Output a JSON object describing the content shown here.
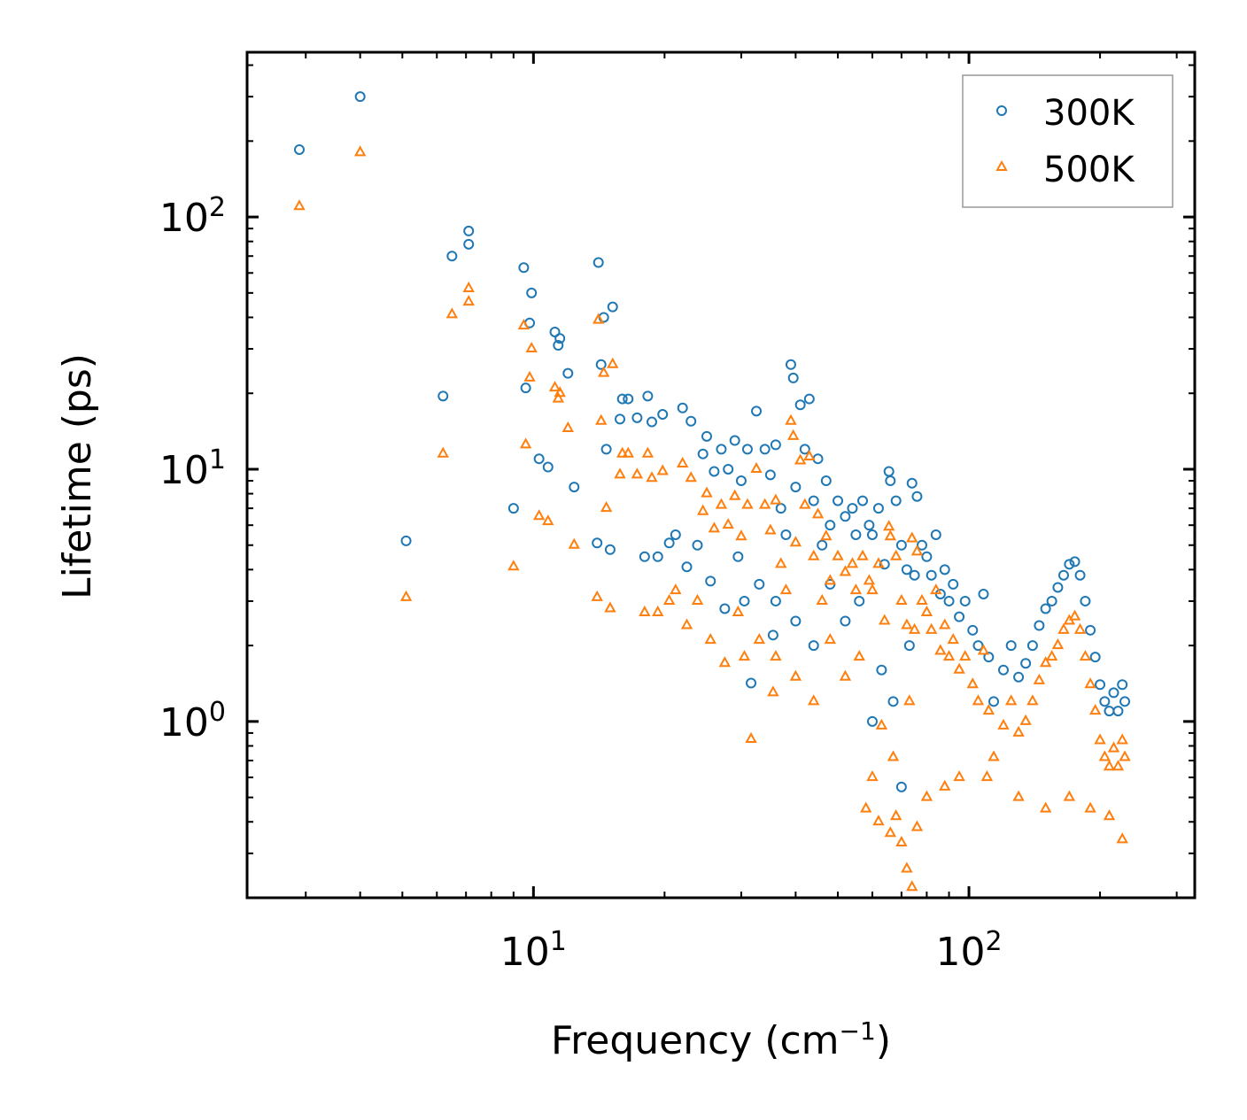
{
  "chart_data": {
    "type": "scatter",
    "title": "",
    "xlabel": "Frequency (cm",
    "xlabel_superscript": "−1",
    "xlabel_close": ")",
    "ylabel": "Lifetime (ps)",
    "xscale": "log",
    "yscale": "log",
    "xlim": [
      2.2,
      330
    ],
    "ylim": [
      0.2,
      450
    ],
    "x_ticks": [
      {
        "value": 10,
        "base": "10",
        "exp": "1"
      },
      {
        "value": 100,
        "base": "10",
        "exp": "2"
      }
    ],
    "y_ticks": [
      {
        "value": 1,
        "base": "10",
        "exp": "0"
      },
      {
        "value": 10,
        "base": "10",
        "exp": "1"
      },
      {
        "value": 100,
        "base": "10",
        "exp": "2"
      }
    ],
    "legend_position": "top-right",
    "series": [
      {
        "name": "300K",
        "color": "#1f77b4",
        "marker": "circle",
        "points": [
          [
            2.9,
            185
          ],
          [
            4.0,
            300
          ],
          [
            5.1,
            5.2
          ],
          [
            6.2,
            19.5
          ],
          [
            6.5,
            70
          ],
          [
            7.1,
            88
          ],
          [
            7.1,
            78
          ],
          [
            9.0,
            7.0
          ],
          [
            9.5,
            63
          ],
          [
            9.6,
            21
          ],
          [
            9.8,
            38
          ],
          [
            9.9,
            50
          ],
          [
            10.3,
            11
          ],
          [
            10.8,
            10.2
          ],
          [
            11.2,
            35
          ],
          [
            11.4,
            31
          ],
          [
            11.5,
            33
          ],
          [
            12.0,
            24
          ],
          [
            12.4,
            8.5
          ],
          [
            14.0,
            5.1
          ],
          [
            14.1,
            66
          ],
          [
            14.3,
            26
          ],
          [
            14.5,
            40
          ],
          [
            14.7,
            12
          ],
          [
            15.0,
            4.8
          ],
          [
            15.2,
            44
          ],
          [
            15.8,
            15.8
          ],
          [
            16.0,
            19
          ],
          [
            16.5,
            19
          ],
          [
            17.3,
            16
          ],
          [
            18.0,
            4.5
          ],
          [
            18.3,
            19.5
          ],
          [
            18.7,
            15.4
          ],
          [
            19.3,
            4.5
          ],
          [
            19.8,
            16.5
          ],
          [
            20.5,
            5.1
          ],
          [
            21.2,
            5.5
          ],
          [
            22.0,
            17.5
          ],
          [
            22.5,
            4.1
          ],
          [
            23.0,
            15.5
          ],
          [
            23.8,
            5.0
          ],
          [
            24.5,
            11.5
          ],
          [
            25.0,
            13.5
          ],
          [
            25.5,
            3.6
          ],
          [
            26.0,
            9.8
          ],
          [
            27.0,
            12
          ],
          [
            27.5,
            2.8
          ],
          [
            28.0,
            10
          ],
          [
            29.0,
            13
          ],
          [
            29.5,
            4.5
          ],
          [
            30.0,
            9
          ],
          [
            30.5,
            3.0
          ],
          [
            31.0,
            12
          ],
          [
            31.6,
            1.42
          ],
          [
            32.5,
            17
          ],
          [
            33.0,
            3.5
          ],
          [
            34.0,
            12
          ],
          [
            35.0,
            9.5
          ],
          [
            35.5,
            2.2
          ],
          [
            36.0,
            12.5
          ],
          [
            37.0,
            7
          ],
          [
            38.0,
            5.5
          ],
          [
            39.0,
            26
          ],
          [
            39.5,
            23
          ],
          [
            40.0,
            8.5
          ],
          [
            41.0,
            18
          ],
          [
            42.0,
            12
          ],
          [
            43.0,
            19
          ],
          [
            44.0,
            7.5
          ],
          [
            45.0,
            11
          ],
          [
            46.0,
            5.0
          ],
          [
            47.0,
            9.0
          ],
          [
            48.0,
            6.0
          ],
          [
            50.0,
            7.5
          ],
          [
            52.0,
            6.5
          ],
          [
            54.0,
            7.0
          ],
          [
            55.0,
            5.5
          ],
          [
            57.0,
            7.5
          ],
          [
            59.0,
            6.0
          ],
          [
            60.0,
            5.5
          ],
          [
            62.0,
            7.0
          ],
          [
            64.0,
            4.2
          ],
          [
            65.5,
            9.8
          ],
          [
            66.0,
            9.0
          ],
          [
            68.0,
            7.5
          ],
          [
            70.0,
            5.0
          ],
          [
            72.0,
            4.0
          ],
          [
            74.0,
            8.8
          ],
          [
            75.0,
            3.8
          ],
          [
            76.0,
            7.8
          ],
          [
            78.0,
            5.0
          ],
          [
            80.0,
            4.5
          ],
          [
            82.0,
            3.8
          ],
          [
            84.0,
            5.5
          ],
          [
            86.0,
            3.2
          ],
          [
            88.0,
            4.0
          ],
          [
            90.0,
            3.0
          ],
          [
            92.0,
            3.5
          ],
          [
            95.0,
            2.6
          ],
          [
            98.0,
            3.0
          ],
          [
            102.0,
            2.3
          ],
          [
            105.0,
            2.0
          ],
          [
            108.0,
            3.2
          ],
          [
            111.0,
            1.8
          ],
          [
            114.0,
            1.2
          ],
          [
            120.0,
            1.6
          ],
          [
            125.0,
            2.0
          ],
          [
            130.0,
            1.5
          ],
          [
            135.0,
            1.7
          ],
          [
            140.0,
            2.0
          ],
          [
            145.0,
            2.4
          ],
          [
            150.0,
            2.8
          ],
          [
            155.0,
            3.0
          ],
          [
            160.0,
            3.4
          ],
          [
            165.0,
            3.8
          ],
          [
            170.0,
            4.2
          ],
          [
            175.0,
            4.3
          ],
          [
            180.0,
            3.8
          ],
          [
            185.0,
            3.0
          ],
          [
            190.0,
            2.3
          ],
          [
            195.0,
            1.8
          ],
          [
            200.0,
            1.4
          ],
          [
            205.0,
            1.2
          ],
          [
            210.0,
            1.1
          ],
          [
            215.0,
            1.3
          ],
          [
            220.0,
            1.1
          ],
          [
            225.0,
            1.4
          ],
          [
            228.0,
            1.2
          ],
          [
            60.0,
            1.0
          ],
          [
            63.0,
            1.6
          ],
          [
            67.0,
            1.2
          ],
          [
            70.0,
            0.55
          ],
          [
            73.0,
            2.0
          ],
          [
            48.0,
            3.5
          ],
          [
            52.0,
            2.5
          ],
          [
            56.0,
            3.0
          ],
          [
            44.0,
            2.0
          ],
          [
            40.0,
            2.5
          ],
          [
            36.0,
            3.0
          ]
        ]
      },
      {
        "name": "500K",
        "color": "#ff7f0e",
        "marker": "triangle",
        "points": [
          [
            2.9,
            110
          ],
          [
            4.0,
            180
          ],
          [
            5.1,
            3.1
          ],
          [
            6.2,
            11.5
          ],
          [
            6.5,
            41
          ],
          [
            7.1,
            52
          ],
          [
            7.1,
            46
          ],
          [
            9.0,
            4.1
          ],
          [
            9.5,
            37
          ],
          [
            9.6,
            12.5
          ],
          [
            9.8,
            23
          ],
          [
            9.9,
            30
          ],
          [
            10.3,
            6.5
          ],
          [
            10.8,
            6.2
          ],
          [
            11.2,
            21
          ],
          [
            11.4,
            19
          ],
          [
            11.5,
            20
          ],
          [
            12.0,
            14.5
          ],
          [
            12.4,
            5.0
          ],
          [
            14.0,
            3.1
          ],
          [
            14.1,
            39
          ],
          [
            14.3,
            15.5
          ],
          [
            14.5,
            24
          ],
          [
            14.7,
            7.0
          ],
          [
            15.0,
            2.8
          ],
          [
            15.2,
            26
          ],
          [
            15.8,
            9.5
          ],
          [
            16.0,
            11.5
          ],
          [
            16.5,
            11.5
          ],
          [
            17.3,
            9.5
          ],
          [
            18.0,
            2.7
          ],
          [
            18.3,
            11.5
          ],
          [
            18.7,
            9.2
          ],
          [
            19.3,
            2.7
          ],
          [
            19.8,
            9.8
          ],
          [
            20.5,
            3.0
          ],
          [
            21.2,
            3.3
          ],
          [
            22.0,
            10.5
          ],
          [
            22.5,
            2.4
          ],
          [
            23.0,
            9.2
          ],
          [
            23.8,
            3.0
          ],
          [
            24.5,
            6.8
          ],
          [
            25.0,
            8.0
          ],
          [
            25.5,
            2.1
          ],
          [
            26.0,
            5.8
          ],
          [
            27.0,
            7.2
          ],
          [
            27.5,
            1.7
          ],
          [
            28.0,
            6.0
          ],
          [
            29.0,
            7.8
          ],
          [
            29.5,
            2.7
          ],
          [
            30.0,
            5.4
          ],
          [
            30.5,
            1.8
          ],
          [
            31.0,
            7.2
          ],
          [
            31.6,
            0.85
          ],
          [
            32.5,
            10
          ],
          [
            33.0,
            2.1
          ],
          [
            34.0,
            7.2
          ],
          [
            35.0,
            5.7
          ],
          [
            35.5,
            1.3
          ],
          [
            36.0,
            7.5
          ],
          [
            37.0,
            4.2
          ],
          [
            38.0,
            3.3
          ],
          [
            39.0,
            15.5
          ],
          [
            39.5,
            13.5
          ],
          [
            40.0,
            5.1
          ],
          [
            41.0,
            10.8
          ],
          [
            42.0,
            7.2
          ],
          [
            43.0,
            11.2
          ],
          [
            44.0,
            4.5
          ],
          [
            45.0,
            6.6
          ],
          [
            46.0,
            3.0
          ],
          [
            47.0,
            5.4
          ],
          [
            48.0,
            3.6
          ],
          [
            50.0,
            4.5
          ],
          [
            52.0,
            3.9
          ],
          [
            54.0,
            4.2
          ],
          [
            55.0,
            3.3
          ],
          [
            57.0,
            4.5
          ],
          [
            59.0,
            3.6
          ],
          [
            60.0,
            3.3
          ],
          [
            62.0,
            4.2
          ],
          [
            64.0,
            2.5
          ],
          [
            65.5,
            5.9
          ],
          [
            66.0,
            5.4
          ],
          [
            68.0,
            4.5
          ],
          [
            70.0,
            3.0
          ],
          [
            72.0,
            2.4
          ],
          [
            74.0,
            5.3
          ],
          [
            75.0,
            2.3
          ],
          [
            76.0,
            4.7
          ],
          [
            78.0,
            3.0
          ],
          [
            80.0,
            2.7
          ],
          [
            82.0,
            2.3
          ],
          [
            84.0,
            3.3
          ],
          [
            86.0,
            1.9
          ],
          [
            88.0,
            2.4
          ],
          [
            90.0,
            1.8
          ],
          [
            92.0,
            2.1
          ],
          [
            95.0,
            1.6
          ],
          [
            98.0,
            1.8
          ],
          [
            102.0,
            1.4
          ],
          [
            105.0,
            1.2
          ],
          [
            108.0,
            1.9
          ],
          [
            111.0,
            1.1
          ],
          [
            114.0,
            0.72
          ],
          [
            120.0,
            0.96
          ],
          [
            125.0,
            1.2
          ],
          [
            130.0,
            0.9
          ],
          [
            135.0,
            1.0
          ],
          [
            140.0,
            1.2
          ],
          [
            145.0,
            1.45
          ],
          [
            150.0,
            1.7
          ],
          [
            155.0,
            1.8
          ],
          [
            160.0,
            2.0
          ],
          [
            165.0,
            2.3
          ],
          [
            170.0,
            2.5
          ],
          [
            175.0,
            2.6
          ],
          [
            180.0,
            2.3
          ],
          [
            185.0,
            1.8
          ],
          [
            190.0,
            1.4
          ],
          [
            195.0,
            1.1
          ],
          [
            200.0,
            0.84
          ],
          [
            205.0,
            0.72
          ],
          [
            210.0,
            0.66
          ],
          [
            215.0,
            0.78
          ],
          [
            220.0,
            0.66
          ],
          [
            225.0,
            0.84
          ],
          [
            228.0,
            0.72
          ],
          [
            60.0,
            0.6
          ],
          [
            63.0,
            0.96
          ],
          [
            67.0,
            0.72
          ],
          [
            70.0,
            0.33
          ],
          [
            72.0,
            0.26
          ],
          [
            73.0,
            1.2
          ],
          [
            74.0,
            0.22
          ],
          [
            48.0,
            2.1
          ],
          [
            52.0,
            1.5
          ],
          [
            56.0,
            1.8
          ],
          [
            44.0,
            1.2
          ],
          [
            40.0,
            1.5
          ],
          [
            36.0,
            1.8
          ],
          [
            58.0,
            0.45
          ],
          [
            62.0,
            0.4
          ],
          [
            66.0,
            0.36
          ],
          [
            68.0,
            0.42
          ],
          [
            76.0,
            0.38
          ],
          [
            80.0,
            0.5
          ],
          [
            88.0,
            0.55
          ],
          [
            95.0,
            0.6
          ],
          [
            110.0,
            0.6
          ],
          [
            130.0,
            0.5
          ],
          [
            150.0,
            0.45
          ],
          [
            170.0,
            0.5
          ],
          [
            190.0,
            0.45
          ],
          [
            210.0,
            0.42
          ],
          [
            225.0,
            0.34
          ]
        ]
      }
    ]
  }
}
